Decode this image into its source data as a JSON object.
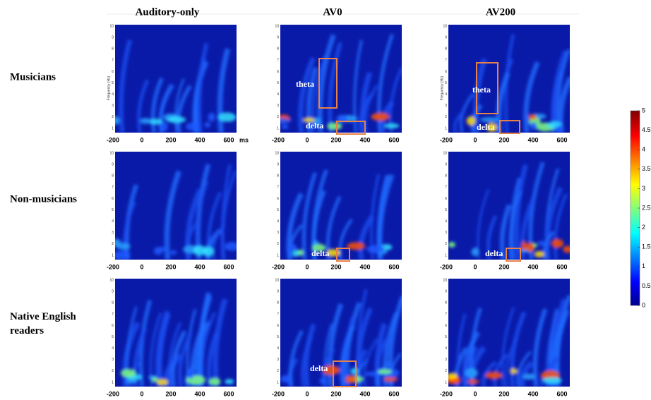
{
  "columns": [
    "Auditory-only",
    "AV0",
    "AV200"
  ],
  "rows": [
    "Musicians",
    "Non-musicians",
    "Native English readers"
  ],
  "x_ticks": [
    "-200",
    "0",
    "200",
    "400",
    "600"
  ],
  "x_unit": "ms",
  "y_ticks": [
    "1",
    "2",
    "3",
    "4",
    "5",
    "6",
    "7",
    "8",
    "9",
    "10"
  ],
  "y_axis_label": "Frequency (Hz)",
  "annotations": [
    "theta",
    "delta",
    "theta",
    "delta",
    "delta",
    "delta",
    "delta"
  ],
  "colorbar": {
    "lim": [
      0,
      5
    ],
    "ticks": [
      0,
      0.5,
      1,
      1.5,
      2,
      2.5,
      3,
      3.5,
      4,
      4.5,
      5
    ]
  }
}
